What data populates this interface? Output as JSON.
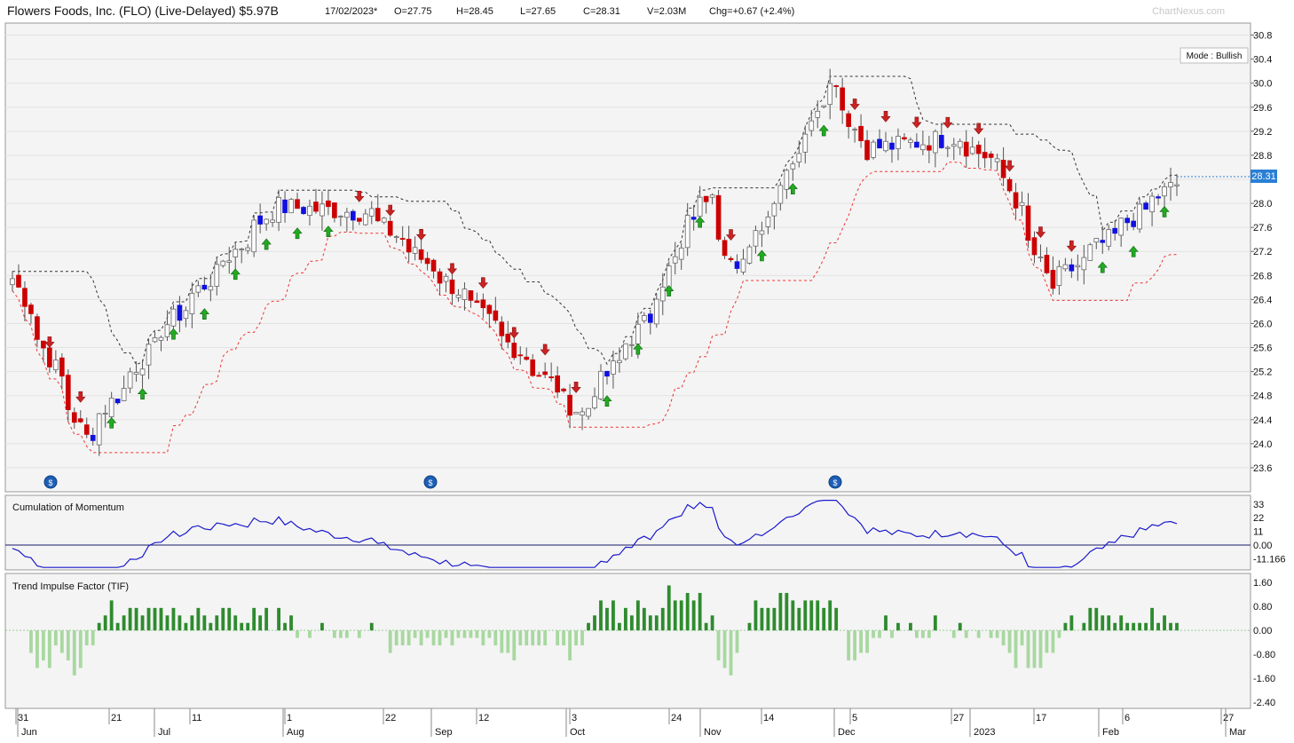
{
  "header": {
    "title": "Flowers Foods, Inc. (FLO) (Live-Delayed) $5.97B",
    "date": "17/02/2023*",
    "open": "O=27.75",
    "high": "H=28.45",
    "low": "L=27.65",
    "close": "C=28.31",
    "volume": "V=2.03M",
    "change": "Chg=+0.67 (+2.4%)",
    "brand": "ChartNexus.com"
  },
  "mode_label": "Mode : Bullish",
  "last_price_label": "28.31",
  "colors": {
    "bull": "#1010e0",
    "bear": "#cc0000",
    "up_arrow": "#22aa22",
    "down_arrow": "#cc2222",
    "resistance": "#333333",
    "support": "#ee3333",
    "momentum": "#1a1acc",
    "tif_pos": "#2e8b2e",
    "tif_neg": "#a8d8a0",
    "panel_bg": "#f4f4f4"
  },
  "panels": {
    "momentum_title": "Cumulation of Momentum",
    "tif_title": "Trend Impulse Factor (TIF)"
  },
  "chart_data": [
    {
      "type": "candlestick",
      "title": "Flowers Foods, Inc. (FLO)",
      "yaxis_ticks": [
        "30.8",
        "30.4",
        "30.0",
        "29.6",
        "29.2",
        "28.8",
        "28.4",
        "28.0",
        "27.6",
        "27.2",
        "26.8",
        "26.4",
        "26.0",
        "25.6",
        "25.2",
        "24.8",
        "24.4",
        "24.0",
        "23.6"
      ],
      "ylim": [
        23.2,
        31.0
      ],
      "x_day_labels": [
        "31",
        "21",
        "11",
        "1",
        "22",
        "12",
        "3",
        "24",
        "14",
        "5",
        "27",
        "17",
        "6",
        "27"
      ],
      "x_month_labels": [
        "Jun",
        "Jul",
        "Aug",
        "Sep",
        "Oct",
        "Nov",
        "Dec",
        "2023",
        "Feb",
        "Mar"
      ],
      "key_points": [
        {
          "date": "2022-05-31",
          "close": 26.75
        },
        {
          "date": "2022-06-16",
          "close": 24.1
        },
        {
          "date": "2022-07-05",
          "close": 26.0
        },
        {
          "date": "2022-07-29",
          "close": 27.95
        },
        {
          "date": "2022-08-19",
          "close": 27.85
        },
        {
          "date": "2022-09-06",
          "close": 26.7
        },
        {
          "date": "2022-10-06",
          "close": 24.5
        },
        {
          "date": "2022-10-21",
          "close": 26.1
        },
        {
          "date": "2022-11-04",
          "close": 28.3
        },
        {
          "date": "2022-11-10",
          "close": 26.8
        },
        {
          "date": "2022-12-02",
          "close": 30.1
        },
        {
          "date": "2022-12-09",
          "close": 28.9
        },
        {
          "date": "2022-12-30",
          "close": 29.1
        },
        {
          "date": "2023-01-09",
          "close": 28.6
        },
        {
          "date": "2023-01-20",
          "close": 26.6
        },
        {
          "date": "2023-02-17",
          "close": 28.31
        }
      ]
    },
    {
      "type": "line",
      "title": "Cumulation of Momentum",
      "yaxis_ticks": [
        "33",
        "22",
        "11",
        "0.00",
        "-11.166"
      ],
      "ylim": [
        -20,
        40
      ]
    },
    {
      "type": "bar",
      "title": "Trend Impulse Factor (TIF)",
      "yaxis_ticks": [
        "1.60",
        "0.80",
        "0.00",
        "-0.80",
        "-1.60",
        "-2.40"
      ],
      "ylim": [
        -2.6,
        1.9
      ]
    }
  ]
}
